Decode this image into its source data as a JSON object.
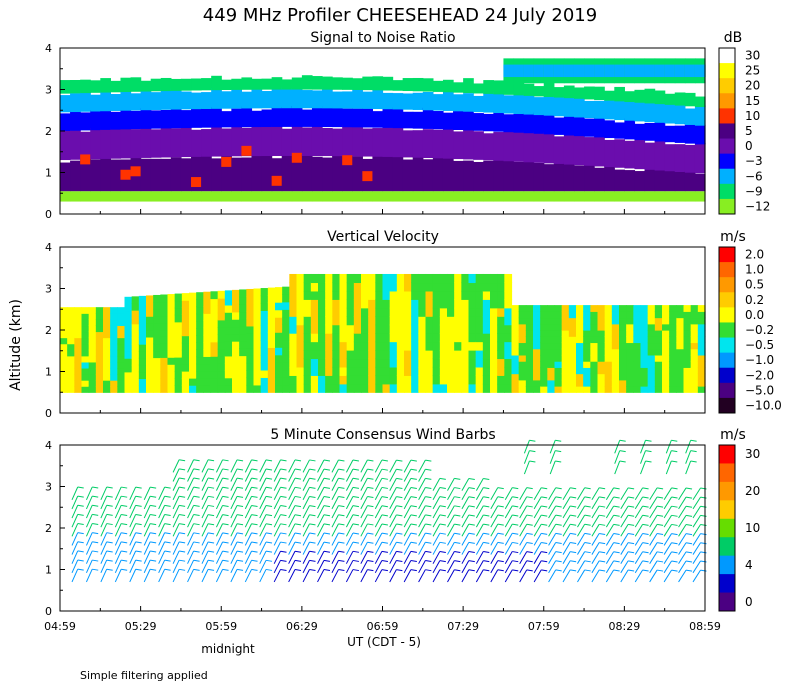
{
  "chart_data": {
    "title": "449 MHz Profiler CHEESEHEAD 24 July 2019",
    "note": "Simple filtering applied",
    "xlabel": "UT  (CDT - 5)",
    "x_ticks": [
      "04:59",
      "05:29",
      "05:59",
      "06:29",
      "06:59",
      "07:29",
      "07:59",
      "08:29",
      "08:59"
    ],
    "x_range": [
      "04:59",
      "08:59"
    ],
    "midnight_label": "midnight",
    "midnight_at": "05:59",
    "ylabel": "Altitude (km)",
    "ylim": [
      0,
      4
    ],
    "y_ticks": [
      "0",
      "1",
      "2",
      "3",
      "4"
    ],
    "panels": [
      {
        "type": "heatmap",
        "title": "Signal to Noise Ratio",
        "unit": "dB",
        "scale": [
          "30",
          "25",
          "20",
          "15",
          "10",
          "5",
          "0",
          "−3",
          "−6",
          "−9",
          "−12"
        ],
        "colors": [
          "#ffffff",
          "#ffff00",
          "#ffcc00",
          "#ff9900",
          "#ff3300",
          "#4b0082",
          "#6a0dad",
          "#0000ff",
          "#00b0ff",
          "#00dd66",
          "#88ee22"
        ],
        "layers_km": [
          {
            "from": 0.3,
            "to": 0.55,
            "level": "−12"
          },
          {
            "from": 0.55,
            "to": 1.3,
            "level": "5"
          },
          {
            "from": 1.3,
            "to": 2.0,
            "level": "0"
          },
          {
            "from": 2.0,
            "to": 2.45,
            "level": "−3"
          },
          {
            "from": 2.45,
            "to": 2.9,
            "level": "−6"
          },
          {
            "from": 2.9,
            "to": 3.2,
            "level": "−9"
          }
        ]
      },
      {
        "type": "heatmap",
        "title": "Vertical Velocity",
        "unit": "m/s",
        "scale": [
          "2.0",
          "1.0",
          "0.5",
          "0.2",
          "0.0",
          "−0.2",
          "−0.5",
          "−1.0",
          "−2.0",
          "−5.0",
          "−10.0"
        ],
        "colors": [
          "#ff0000",
          "#ff6600",
          "#ff9900",
          "#ffcc00",
          "#ffff00",
          "#33dd33",
          "#00e5ee",
          "#0099ff",
          "#0000cc",
          "#4b0082",
          "#220022"
        ],
        "data_top_km": 3.4,
        "data_bottom_km": 0.5
      },
      {
        "type": "barbs",
        "title": "5 Minute Consensus Wind Barbs",
        "unit": "m/s",
        "scale": [
          "30",
          "",
          "20",
          "",
          "10",
          "",
          "4",
          "",
          "0"
        ],
        "colors": [
          "#ff0000",
          "#ff6600",
          "#ff9900",
          "#ffcc00",
          "#66dd00",
          "#00cc66",
          "#0099ff",
          "#0000cc",
          "#4b0082"
        ]
      }
    ]
  }
}
